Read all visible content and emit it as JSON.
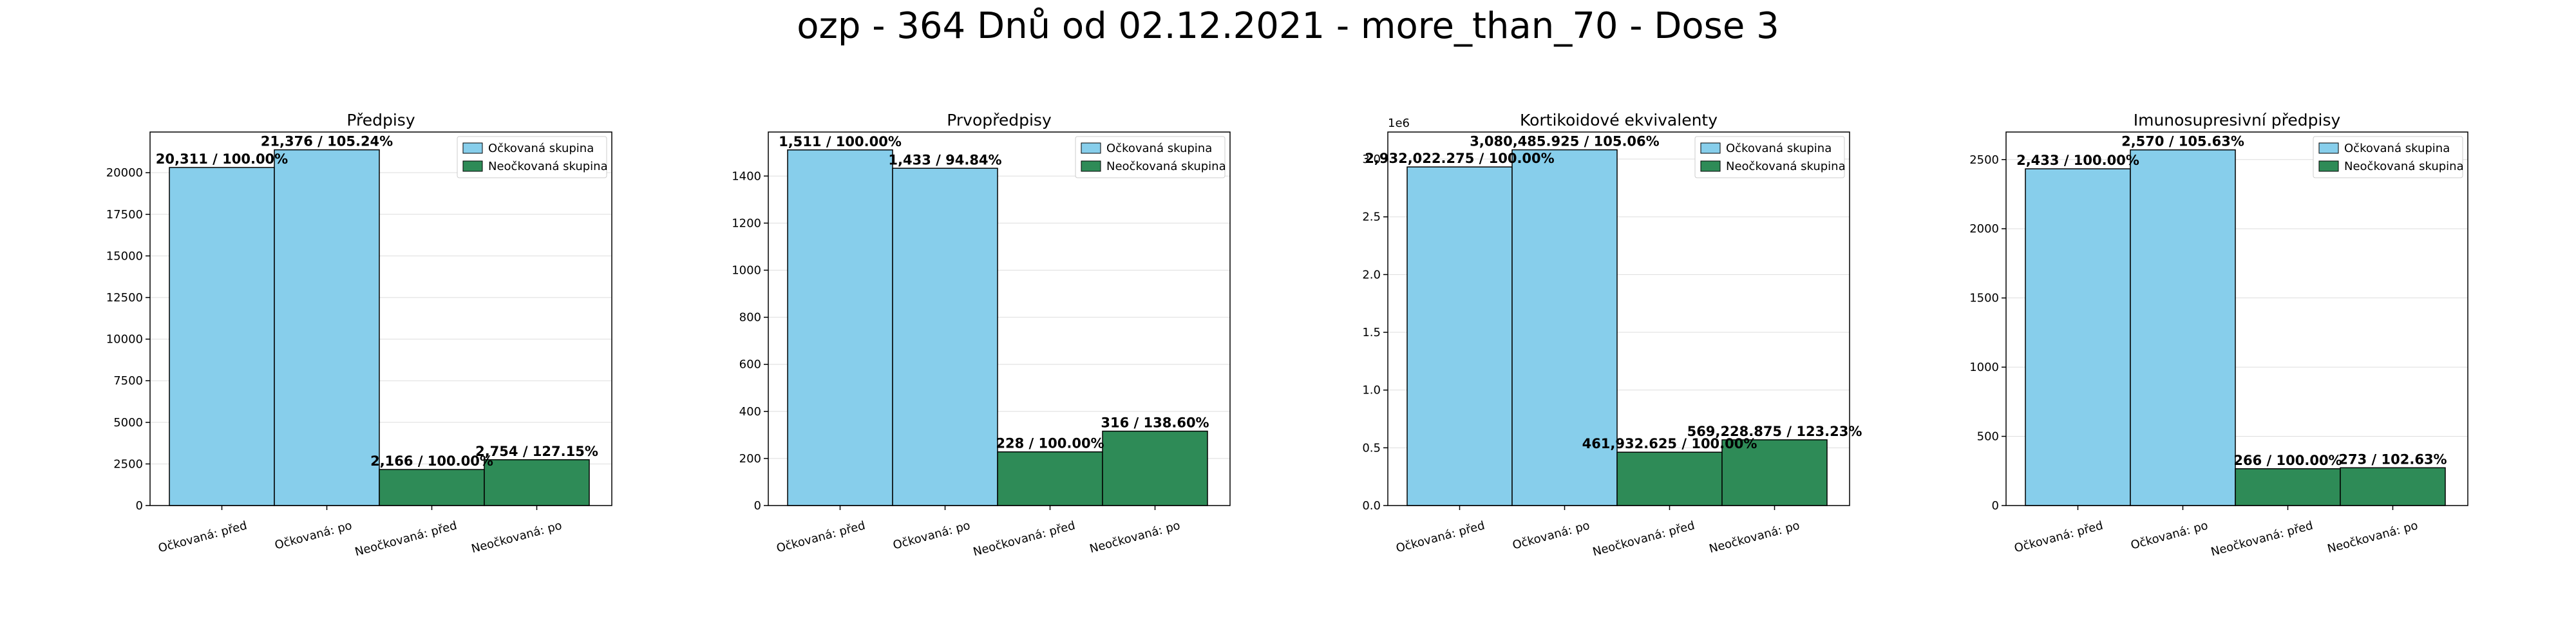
{
  "title": "ozp - 364 Dnů od 02.12.2021 - more_than_70 - Dose 3",
  "colors": {
    "vaccinated": "#87CEEB",
    "unvaccinated": "#2E8B57",
    "edge": "#000000",
    "grid": "#dddddd"
  },
  "chart_data": [
    {
      "type": "bar",
      "title": "Předpisy",
      "categories": [
        "Očkovaná: před",
        "Očkovaná: po",
        "Neočkovaná: před",
        "Neočkovaná: po"
      ],
      "values": [
        20311,
        21376,
        2166,
        2754
      ],
      "labels": [
        "20,311 / 100.00%",
        "21,376 / 105.24%",
        "2,166 / 100.00%",
        "2,754 / 127.15%"
      ],
      "groups": [
        "vaccinated",
        "vaccinated",
        "unvaccinated",
        "unvaccinated"
      ],
      "legend": [
        "Očkovaná skupina",
        "Neočkovaná skupina"
      ],
      "legend_position": "top-right",
      "ylim": [
        0,
        22445
      ],
      "yticks": [
        0,
        2500,
        5000,
        7500,
        10000,
        12500,
        15000,
        17500,
        20000
      ],
      "ytick_labels": [
        "0",
        "2500",
        "5000",
        "7500",
        "10000",
        "12500",
        "15000",
        "17500",
        "20000"
      ],
      "offset_label": "",
      "grid": true
    },
    {
      "type": "bar",
      "title": "Prvopředpisy",
      "categories": [
        "Očkovaná: před",
        "Očkovaná: po",
        "Neočkovaná: před",
        "Neočkovaná: po"
      ],
      "values": [
        1511,
        1433,
        228,
        316
      ],
      "labels": [
        "1,511 / 100.00%",
        "1,433 / 94.84%",
        "228 / 100.00%",
        "316 / 138.60%"
      ],
      "groups": [
        "vaccinated",
        "vaccinated",
        "unvaccinated",
        "unvaccinated"
      ],
      "legend": [
        "Očkovaná skupina",
        "Neočkovaná skupina"
      ],
      "legend_position": "top-right",
      "ylim": [
        0,
        1587
      ],
      "yticks": [
        0,
        200,
        400,
        600,
        800,
        1000,
        1200,
        1400
      ],
      "ytick_labels": [
        "0",
        "200",
        "400",
        "600",
        "800",
        "1000",
        "1200",
        "1400"
      ],
      "offset_label": "",
      "grid": true
    },
    {
      "type": "bar",
      "title": "Kortikoidové ekvivalenty",
      "categories": [
        "Očkovaná: před",
        "Očkovaná: po",
        "Neočkovaná: před",
        "Neočkovaná: po"
      ],
      "values": [
        2932022.275,
        3080485.925,
        461932.625,
        569228.875
      ],
      "labels": [
        "2,932,022.275 / 100.00%",
        "3,080,485.925 / 105.06%",
        "461,932.625 / 100.00%",
        "569,228.875 / 123.23%"
      ],
      "groups": [
        "vaccinated",
        "vaccinated",
        "unvaccinated",
        "unvaccinated"
      ],
      "legend": [
        "Očkovaná skupina",
        "Neočkovaná skupina"
      ],
      "legend_position": "top-right",
      "ylim": [
        0,
        3234510
      ],
      "yticks": [
        0,
        500000,
        1000000,
        1500000,
        2000000,
        2500000,
        3000000
      ],
      "ytick_labels": [
        "0.0",
        "0.5",
        "1.0",
        "1.5",
        "2.0",
        "2.5",
        "3.0"
      ],
      "offset_label": "1e6",
      "grid": true
    },
    {
      "type": "bar",
      "title": "Imunosupresivní předpisy",
      "categories": [
        "Očkovaná: před",
        "Očkovaná: po",
        "Neočkovaná: před",
        "Neočkovaná: po"
      ],
      "values": [
        2433,
        2570,
        266,
        273
      ],
      "labels": [
        "2,433 / 100.00%",
        "2,570 / 105.63%",
        "266 / 100.00%",
        "273 / 102.63%"
      ],
      "groups": [
        "vaccinated",
        "vaccinated",
        "unvaccinated",
        "unvaccinated"
      ],
      "legend": [
        "Očkovaná skupina",
        "Neočkovaná skupina"
      ],
      "legend_position": "top-right",
      "ylim": [
        0,
        2699
      ],
      "yticks": [
        0,
        500,
        1000,
        1500,
        2000,
        2500
      ],
      "ytick_labels": [
        "0",
        "500",
        "1000",
        "1500",
        "2000",
        "2500"
      ],
      "offset_label": "",
      "grid": true
    }
  ]
}
